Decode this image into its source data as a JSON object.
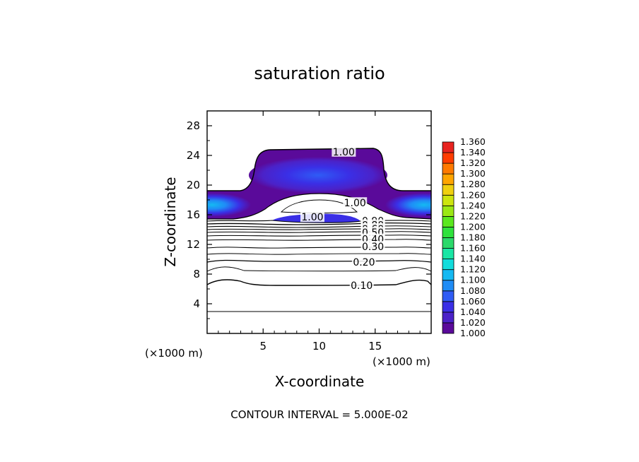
{
  "chart_data": {
    "type": "contour",
    "title": "saturation ratio",
    "xlabel": "X-coordinate",
    "ylabel": "Z-coordinate",
    "x_unit": "(×1000 m)",
    "z_unit": "(×1000 m)",
    "xlim": [
      0,
      20
    ],
    "ylim": [
      0,
      30
    ],
    "xticks": [
      5,
      10,
      15
    ],
    "yticks": [
      4,
      8,
      12,
      16,
      20,
      24,
      28
    ],
    "footer": "CONTOUR INTERVAL = 5.000E-02",
    "contour_labels": [
      {
        "text": "1.00",
        "x": 12.2,
        "z": 24.5
      },
      {
        "text": "1.00",
        "x": 13.2,
        "z": 17.6
      },
      {
        "text": "1.00",
        "x": 9.4,
        "z": 15.7
      },
      {
        "text": "0.90",
        "x": 14.8,
        "z": 15.2
      },
      {
        "text": "0.80",
        "x": 14.8,
        "z": 14.6
      },
      {
        "text": "0.60",
        "x": 14.8,
        "z": 14.1
      },
      {
        "text": "0.50",
        "x": 14.8,
        "z": 13.6
      },
      {
        "text": "0.40",
        "x": 14.8,
        "z": 12.7
      },
      {
        "text": "0.30",
        "x": 14.8,
        "z": 11.7
      },
      {
        "text": "0.20",
        "x": 14.0,
        "z": 9.6
      },
      {
        "text": "0.10",
        "x": 13.8,
        "z": 6.5
      }
    ],
    "colorbar": {
      "levels": [
        "1.000",
        "1.020",
        "1.040",
        "1.060",
        "1.080",
        "1.100",
        "1.120",
        "1.140",
        "1.160",
        "1.180",
        "1.200",
        "1.220",
        "1.240",
        "1.260",
        "1.280",
        "1.300",
        "1.320",
        "1.340",
        "1.360"
      ],
      "colors": [
        "#5a0a9a",
        "#4b22c8",
        "#3a2fe6",
        "#2f5cf5",
        "#1f8cf6",
        "#14b9f2",
        "#12dcdc",
        "#18e6a4",
        "#2ad96a",
        "#2ee23c",
        "#5ae81e",
        "#9be814",
        "#cde50f",
        "#f0d010",
        "#ffa500",
        "#ff7a00",
        "#ff3c00",
        "#e8231f",
        "#f08080"
      ]
    }
  }
}
